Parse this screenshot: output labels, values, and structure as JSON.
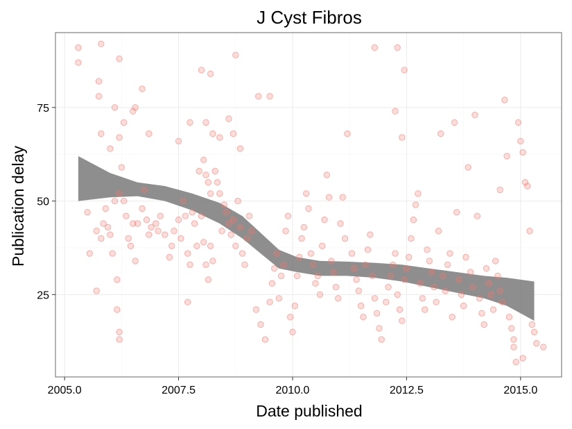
{
  "chart_data": {
    "type": "scatter",
    "title": "J Cyst Fibros",
    "xlabel": "Date published",
    "ylabel": "Publication delay",
    "xlim": [
      2004.8,
      2015.9
    ],
    "ylim": [
      3,
      95
    ],
    "x_ticks": [
      2005.0,
      2007.5,
      2010.0,
      2012.5,
      2015.0
    ],
    "x_tick_labels": [
      "2005.0",
      "2007.5",
      "2010.0",
      "2012.5",
      "2015.0"
    ],
    "y_ticks": [
      25,
      50,
      75
    ],
    "y_tick_labels": [
      "25",
      "50",
      "75"
    ],
    "grid": true,
    "legend": "none",
    "point_color": "#f8766d",
    "band_color": "#7a7a7a",
    "series": [
      {
        "type": "points",
        "points": [
          [
            2005.3,
            91
          ],
          [
            2005.3,
            87
          ],
          [
            2005.8,
            92
          ],
          [
            2005.75,
            82
          ],
          [
            2005.75,
            78
          ],
          [
            2006.2,
            88
          ],
          [
            2006.7,
            80
          ],
          [
            2005.8,
            68
          ],
          [
            2006.0,
            64
          ],
          [
            2006.1,
            75
          ],
          [
            2006.3,
            71
          ],
          [
            2006.5,
            74
          ],
          [
            2006.55,
            75
          ],
          [
            2006.2,
            67
          ],
          [
            2006.85,
            68
          ],
          [
            2005.5,
            47
          ],
          [
            2005.55,
            36
          ],
          [
            2005.7,
            42
          ],
          [
            2005.8,
            40
          ],
          [
            2005.85,
            44
          ],
          [
            2005.9,
            48
          ],
          [
            2005.95,
            43
          ],
          [
            2006.0,
            41
          ],
          [
            2006.05,
            36
          ],
          [
            2006.1,
            50
          ],
          [
            2006.15,
            29
          ],
          [
            2006.2,
            52
          ],
          [
            2006.25,
            59
          ],
          [
            2006.3,
            50
          ],
          [
            2006.35,
            46
          ],
          [
            2006.4,
            40
          ],
          [
            2006.45,
            38
          ],
          [
            2006.5,
            44
          ],
          [
            2006.55,
            34
          ],
          [
            2006.6,
            44
          ],
          [
            2006.7,
            48
          ],
          [
            2006.75,
            53
          ],
          [
            2006.8,
            45
          ],
          [
            2006.85,
            41
          ],
          [
            2006.9,
            43
          ],
          [
            2007.0,
            44
          ],
          [
            2007.05,
            42
          ],
          [
            2007.1,
            46
          ],
          [
            2007.2,
            41
          ],
          [
            2007.3,
            35
          ],
          [
            2007.35,
            38
          ],
          [
            2007.4,
            42
          ],
          [
            2007.5,
            45
          ],
          [
            2007.55,
            40
          ],
          [
            2007.6,
            50
          ],
          [
            2007.65,
            46
          ],
          [
            2007.7,
            36
          ],
          [
            2007.75,
            33
          ],
          [
            2007.8,
            47
          ],
          [
            2007.85,
            44
          ],
          [
            2007.9,
            38
          ],
          [
            2006.15,
            21
          ],
          [
            2006.2,
            15
          ],
          [
            2006.2,
            13
          ],
          [
            2005.7,
            26
          ],
          [
            2007.7,
            23
          ],
          [
            2008.0,
            85
          ],
          [
            2008.2,
            84
          ],
          [
            2008.75,
            89
          ],
          [
            2007.75,
            71
          ],
          [
            2008.1,
            71
          ],
          [
            2008.25,
            68
          ],
          [
            2008.4,
            67
          ],
          [
            2008.6,
            72
          ],
          [
            2008.7,
            68
          ],
          [
            2008.85,
            64
          ],
          [
            2007.5,
            66
          ],
          [
            2007.95,
            58
          ],
          [
            2008.05,
            61
          ],
          [
            2008.1,
            57
          ],
          [
            2008.15,
            55
          ],
          [
            2008.2,
            52
          ],
          [
            2008.3,
            58
          ],
          [
            2008.35,
            55
          ],
          [
            2008.4,
            52
          ],
          [
            2008.5,
            49
          ],
          [
            2008.55,
            47
          ],
          [
            2008.6,
            44
          ],
          [
            2008.65,
            41
          ],
          [
            2008.7,
            45
          ],
          [
            2008.75,
            38
          ],
          [
            2008.8,
            50
          ],
          [
            2008.85,
            43
          ],
          [
            2008.9,
            36
          ],
          [
            2008.95,
            33
          ],
          [
            2009.0,
            40
          ],
          [
            2009.05,
            46
          ],
          [
            2009.1,
            42
          ],
          [
            2008.0,
            46
          ],
          [
            2008.05,
            39
          ],
          [
            2008.1,
            33
          ],
          [
            2008.15,
            29
          ],
          [
            2008.2,
            38
          ],
          [
            2008.25,
            34
          ],
          [
            2008.45,
            42
          ],
          [
            2009.25,
            78
          ],
          [
            2009.5,
            78
          ],
          [
            2009.2,
            21
          ],
          [
            2009.3,
            17
          ],
          [
            2009.4,
            13
          ],
          [
            2009.5,
            23
          ],
          [
            2009.55,
            28
          ],
          [
            2009.6,
            32
          ],
          [
            2009.65,
            36
          ],
          [
            2009.7,
            24
          ],
          [
            2009.75,
            30
          ],
          [
            2009.8,
            33
          ],
          [
            2009.85,
            42
          ],
          [
            2009.9,
            46
          ],
          [
            2009.95,
            19
          ],
          [
            2010.0,
            15
          ],
          [
            2010.05,
            22
          ],
          [
            2010.1,
            30
          ],
          [
            2010.15,
            35
          ],
          [
            2010.2,
            40
          ],
          [
            2010.25,
            43
          ],
          [
            2010.3,
            52
          ],
          [
            2010.35,
            48
          ],
          [
            2010.4,
            36
          ],
          [
            2010.45,
            33
          ],
          [
            2010.5,
            28
          ],
          [
            2010.55,
            30
          ],
          [
            2010.6,
            25
          ],
          [
            2010.65,
            38
          ],
          [
            2010.7,
            45
          ],
          [
            2010.75,
            57
          ],
          [
            2010.8,
            51
          ],
          [
            2010.85,
            34
          ],
          [
            2010.9,
            31
          ],
          [
            2010.95,
            27
          ],
          [
            2011.0,
            24
          ],
          [
            2011.05,
            44
          ],
          [
            2011.1,
            51
          ],
          [
            2011.15,
            40
          ],
          [
            2011.2,
            68
          ],
          [
            2011.3,
            36
          ],
          [
            2011.35,
            32
          ],
          [
            2011.4,
            29
          ],
          [
            2011.45,
            26
          ],
          [
            2011.5,
            22
          ],
          [
            2011.55,
            19
          ],
          [
            2011.6,
            33
          ],
          [
            2011.65,
            37
          ],
          [
            2011.7,
            41
          ],
          [
            2011.75,
            30
          ],
          [
            2011.8,
            24
          ],
          [
            2011.85,
            20
          ],
          [
            2011.9,
            16
          ],
          [
            2011.95,
            13
          ],
          [
            2011.8,
            91
          ],
          [
            2012.3,
            91
          ],
          [
            2012.45,
            85
          ],
          [
            2012.25,
            74
          ],
          [
            2012.4,
            67
          ],
          [
            2012.05,
            23
          ],
          [
            2012.1,
            27
          ],
          [
            2012.15,
            30
          ],
          [
            2012.2,
            33
          ],
          [
            2012.25,
            36
          ],
          [
            2012.3,
            25
          ],
          [
            2012.35,
            21
          ],
          [
            2012.4,
            18
          ],
          [
            2012.45,
            29
          ],
          [
            2012.5,
            32
          ],
          [
            2012.55,
            35
          ],
          [
            2012.6,
            40
          ],
          [
            2012.65,
            45
          ],
          [
            2012.7,
            49
          ],
          [
            2012.75,
            52
          ],
          [
            2012.8,
            28
          ],
          [
            2012.85,
            24
          ],
          [
            2012.9,
            21
          ],
          [
            2012.95,
            37
          ],
          [
            2013.0,
            34
          ],
          [
            2013.05,
            31
          ],
          [
            2013.1,
            27
          ],
          [
            2013.15,
            23
          ],
          [
            2013.2,
            42
          ],
          [
            2013.25,
            68
          ],
          [
            2013.3,
            30
          ],
          [
            2013.35,
            26
          ],
          [
            2013.4,
            33
          ],
          [
            2013.45,
            36
          ],
          [
            2013.5,
            19
          ],
          [
            2013.55,
            71
          ],
          [
            2013.6,
            47
          ],
          [
            2013.65,
            29
          ],
          [
            2013.7,
            25
          ],
          [
            2013.75,
            22
          ],
          [
            2013.8,
            35
          ],
          [
            2013.85,
            59
          ],
          [
            2013.9,
            31
          ],
          [
            2013.95,
            27
          ],
          [
            2014.0,
            73
          ],
          [
            2014.05,
            46
          ],
          [
            2014.1,
            24
          ],
          [
            2014.15,
            20
          ],
          [
            2014.2,
            17
          ],
          [
            2014.25,
            32
          ],
          [
            2014.3,
            28
          ],
          [
            2014.35,
            25
          ],
          [
            2014.4,
            21
          ],
          [
            2014.45,
            34
          ],
          [
            2014.5,
            30
          ],
          [
            2014.55,
            26
          ],
          [
            2014.6,
            23
          ],
          [
            2014.65,
            77
          ],
          [
            2014.7,
            62
          ],
          [
            2014.75,
            19
          ],
          [
            2014.8,
            16
          ],
          [
            2014.85,
            11
          ],
          [
            2014.9,
            7
          ],
          [
            2014.95,
            71
          ],
          [
            2015.0,
            66
          ],
          [
            2015.05,
            63
          ],
          [
            2015.1,
            55
          ],
          [
            2015.15,
            54
          ],
          [
            2015.2,
            42
          ],
          [
            2015.25,
            17
          ],
          [
            2015.3,
            15
          ],
          [
            2015.35,
            12
          ],
          [
            2015.05,
            8
          ],
          [
            2015.5,
            11
          ],
          [
            2014.55,
            53
          ],
          [
            2014.85,
            13
          ]
        ]
      },
      {
        "type": "smooth_band",
        "x": [
          2005.3,
          2006.0,
          2006.6,
          2007.2,
          2007.8,
          2008.4,
          2008.9,
          2009.3,
          2009.7,
          2010.1,
          2010.6,
          2011.2,
          2011.8,
          2012.4,
          2013.0,
          2013.6,
          2014.2,
          2014.7,
          2015.3
        ],
        "ymin": [
          50,
          51,
          51.3,
          50,
          47.5,
          44,
          40,
          36,
          32,
          31,
          30,
          30,
          29.5,
          28.5,
          27,
          25.5,
          24,
          22,
          18
        ],
        "ymax": [
          62,
          57.5,
          55,
          54,
          52,
          49.5,
          46,
          41.5,
          37,
          35,
          34,
          33.8,
          33.5,
          33,
          32,
          31,
          30,
          29.5,
          28.5
        ]
      }
    ]
  }
}
